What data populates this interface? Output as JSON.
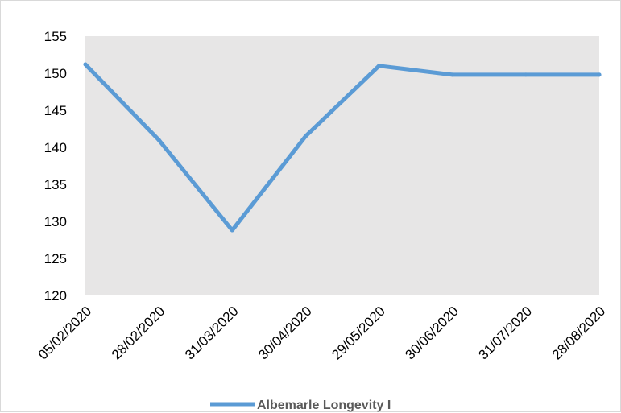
{
  "chart_data": {
    "type": "line",
    "categories": [
      "05/02/2020",
      "28/02/2020",
      "31/03/2020",
      "30/04/2020",
      "29/05/2020",
      "30/06/2020",
      "31/07/2020",
      "28/08/2020"
    ],
    "series": [
      {
        "name": "Albemarle Longevity I",
        "values": [
          151.2,
          141,
          128.8,
          141.5,
          151,
          149.8,
          149.8,
          149.8
        ]
      }
    ],
    "ylim": [
      120,
      155
    ],
    "yticks": [
      120,
      125,
      130,
      135,
      140,
      145,
      150,
      155
    ],
    "ytick_labels": [
      "120",
      "125",
      "130",
      "135",
      "140",
      "145",
      "150",
      "155"
    ],
    "grid": false,
    "legend_position": "bottom",
    "colors": {
      "line": "#5b9bd5",
      "plot_background": "#e7e6e6",
      "text": "#000000",
      "legend_text": "#595959"
    }
  }
}
